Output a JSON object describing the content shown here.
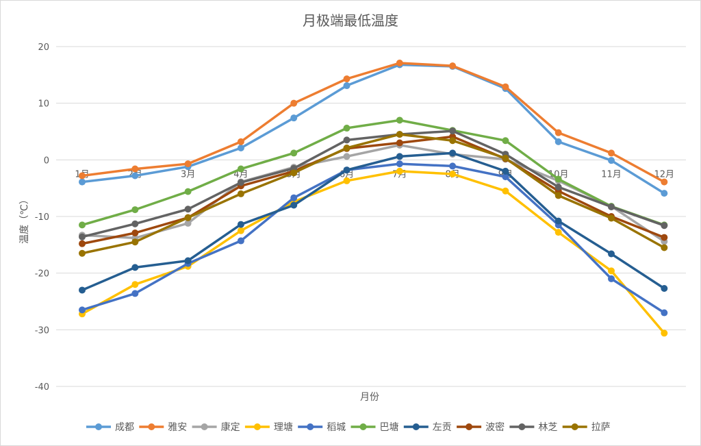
{
  "chart_data": {
    "type": "line",
    "title": "月极端最低温度",
    "xlabel": "月份",
    "ylabel": "温度（℃）",
    "ylim": [
      -40,
      20
    ],
    "yticks": [
      20,
      10,
      0,
      -10,
      -20,
      -30,
      -40
    ],
    "categories": [
      "1月",
      "2月",
      "3月",
      "4月",
      "5月",
      "6月",
      "7月",
      "8月",
      "9月",
      "10月",
      "11月",
      "12月"
    ],
    "grid": true,
    "legend_position": "bottom",
    "series": [
      {
        "name": "成都",
        "color": "#5b9bd5",
        "values": [
          -3.9,
          -2.8,
          -1.2,
          2.1,
          7.4,
          13.1,
          16.8,
          16.5,
          12.6,
          3.2,
          -0.1,
          -5.9
        ]
      },
      {
        "name": "雅安",
        "color": "#ed7d31",
        "values": [
          -2.8,
          -1.6,
          -0.7,
          3.2,
          10.0,
          14.3,
          17.1,
          16.6,
          12.9,
          4.8,
          1.2,
          -3.9
        ]
      },
      {
        "name": "康定",
        "color": "#a5a5a5",
        "values": [
          -13.3,
          -13.8,
          -11.2,
          -3.9,
          -1.3,
          0.6,
          2.6,
          1.0,
          0.1,
          -3.7,
          -8.2,
          -14.4
        ]
      },
      {
        "name": "理塘",
        "color": "#ffc000",
        "values": [
          -27.2,
          -22.0,
          -18.8,
          -12.5,
          -7.4,
          -3.7,
          -2.0,
          -2.5,
          -5.5,
          -12.8,
          -19.6,
          -30.6
        ]
      },
      {
        "name": "稻城",
        "color": "#4472c4",
        "values": [
          -26.5,
          -23.6,
          -18.3,
          -14.3,
          -6.7,
          -1.8,
          -0.7,
          -1.1,
          -3.0,
          -11.5,
          -21.0,
          -27.0
        ]
      },
      {
        "name": "巴塘",
        "color": "#70ad47",
        "values": [
          -11.5,
          -8.8,
          -5.6,
          -1.6,
          1.2,
          5.6,
          7.0,
          5.2,
          3.4,
          -3.4,
          -8.2,
          -11.5
        ]
      },
      {
        "name": "左贡",
        "color": "#255e91",
        "values": [
          -23.0,
          -19.0,
          -17.8,
          -11.4,
          -8.0,
          -1.8,
          0.6,
          1.2,
          -2.0,
          -10.8,
          -16.6,
          -22.7
        ]
      },
      {
        "name": "波密",
        "color": "#9e480e",
        "values": [
          -14.8,
          -12.9,
          -10.2,
          -4.6,
          -2.0,
          2.0,
          3.0,
          4.1,
          0.2,
          -5.5,
          -10.0,
          -13.7
        ]
      },
      {
        "name": "林芝",
        "color": "#636363",
        "values": [
          -13.6,
          -11.3,
          -8.7,
          -4.0,
          -1.5,
          3.5,
          4.5,
          5.1,
          1.0,
          -4.8,
          -8.3,
          -11.6
        ]
      },
      {
        "name": "拉萨",
        "color": "#997300",
        "values": [
          -16.5,
          -14.5,
          -10.2,
          -6.0,
          -2.3,
          2.1,
          4.5,
          3.4,
          0.3,
          -6.3,
          -10.3,
          -15.5
        ]
      }
    ]
  }
}
